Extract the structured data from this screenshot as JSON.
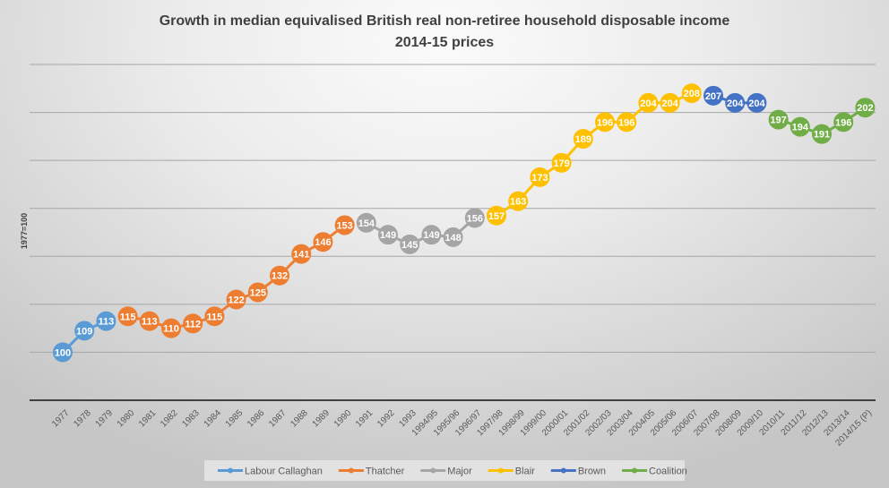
{
  "chart_data": {
    "type": "line",
    "title": "Growth in median equivalised British real non-retiree household disposable income",
    "subtitle": "2014-15 prices",
    "xlabel": "",
    "ylabel": "1977=100",
    "ylim": [
      80,
      220
    ],
    "ytick_step": 20,
    "ytick_labels_shown": false,
    "grid": true,
    "legend_position": "bottom",
    "categories": [
      "1977",
      "1978",
      "1979",
      "1980",
      "1981",
      "1982",
      "1983",
      "1984",
      "1985",
      "1986",
      "1987",
      "1988",
      "1989",
      "1990",
      "1991",
      "1992",
      "1993",
      "1994/95",
      "1995/96",
      "1996/97",
      "1997/98",
      "1998/99",
      "1999/00",
      "2000/01",
      "2001/02",
      "2002/03",
      "2003/04",
      "2004/05",
      "2005/06",
      "2006/07",
      "2007/08",
      "2008/09",
      "2009/10",
      "2010/11",
      "2011/12",
      "2012/13",
      "2013/14",
      "2014/15 (P)"
    ],
    "series": [
      {
        "name": "Labour Callaghan",
        "color": "#5B9BD5",
        "start_index": 0,
        "values": [
          100,
          109,
          113
        ],
        "labels": [
          "100",
          "109",
          "113"
        ]
      },
      {
        "name": "Thatcher",
        "color": "#ED7D31",
        "start_index": 3,
        "values": [
          115,
          113,
          110,
          112,
          115,
          122,
          125,
          132,
          141,
          146,
          153
        ],
        "labels": [
          "115",
          "113",
          "110",
          "112",
          "115",
          "122",
          "125",
          "132",
          "141",
          "146",
          "153"
        ]
      },
      {
        "name": "Major",
        "color": "#A5A5A5",
        "start_index": 14,
        "values": [
          154,
          149,
          145,
          149,
          148,
          156
        ],
        "labels": [
          "154",
          "149",
          "145",
          "149",
          "148",
          "156"
        ]
      },
      {
        "name": "Blair",
        "color": "#FFC000",
        "start_index": 20,
        "values": [
          157,
          163,
          173,
          179,
          189,
          196,
          196,
          204,
          204,
          208
        ],
        "labels": [
          "157",
          "163",
          "173",
          "179",
          "189",
          "196",
          "196",
          "204",
          "204",
          "208"
        ]
      },
      {
        "name": "Brown",
        "color": "#4472C4",
        "start_index": 30,
        "values": [
          207,
          204,
          204
        ],
        "labels": [
          "207",
          "204",
          "204"
        ]
      },
      {
        "name": "Coalition",
        "color": "#70AD47",
        "start_index": 33,
        "values": [
          197,
          194,
          191,
          196,
          202
        ],
        "labels": [
          "197",
          "194",
          "191",
          "196",
          "202"
        ]
      }
    ]
  }
}
